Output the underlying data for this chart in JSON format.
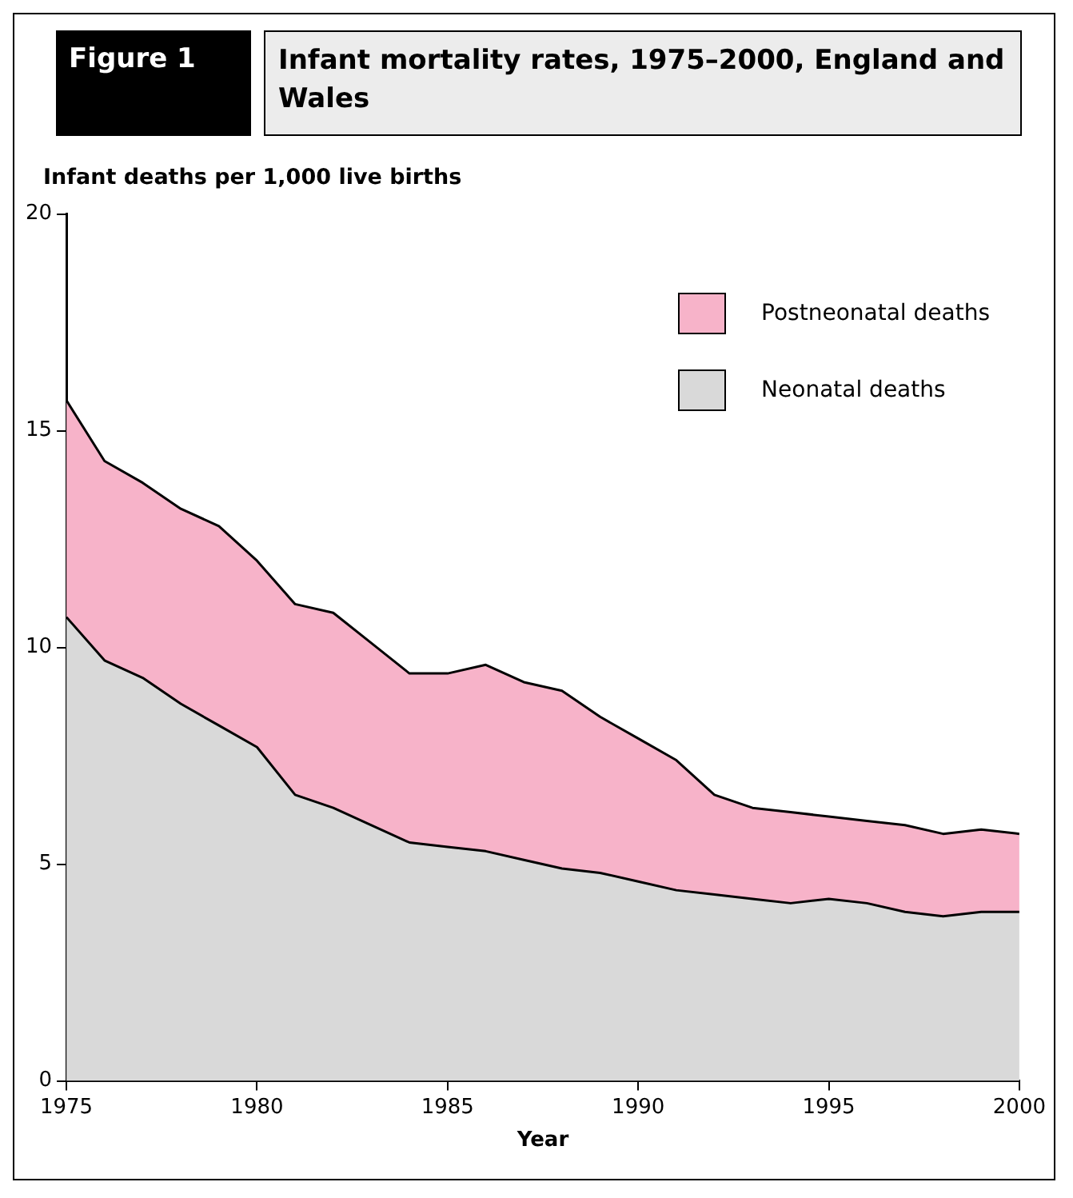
{
  "chart_data": {
    "type": "area",
    "title": "Infant mortality rates, 1975–2000, England and Wales",
    "ylabel": "Infant deaths per 1,000 live births",
    "xlabel": "Year",
    "annotations": [
      "Figure 1"
    ],
    "x": [
      1975,
      1976,
      1977,
      1978,
      1979,
      1980,
      1981,
      1982,
      1983,
      1984,
      1985,
      1986,
      1987,
      1988,
      1989,
      1990,
      1991,
      1992,
      1993,
      1994,
      1995,
      1996,
      1997,
      1998,
      1999,
      2000
    ],
    "stacked": true,
    "series": [
      {
        "name": "Neonatal deaths",
        "color": "#d9d9d9",
        "values": [
          10.7,
          9.7,
          9.3,
          8.7,
          8.2,
          7.7,
          6.6,
          6.3,
          5.9,
          5.5,
          5.4,
          5.3,
          5.1,
          4.9,
          4.8,
          4.6,
          4.4,
          4.3,
          4.2,
          4.1,
          4.2,
          4.1,
          3.9,
          3.8,
          3.9,
          3.9
        ]
      },
      {
        "name": "Postneonatal deaths",
        "color": "#f7b3c9",
        "values": [
          5.0,
          4.6,
          4.5,
          4.5,
          4.6,
          4.3,
          4.4,
          4.5,
          4.2,
          3.9,
          4.0,
          4.3,
          4.1,
          4.1,
          3.6,
          3.3,
          3.0,
          2.3,
          2.1,
          2.1,
          1.9,
          1.9,
          2.0,
          1.9,
          1.9,
          1.8
        ]
      }
    ],
    "xlim": [
      1975,
      2000
    ],
    "xticks": [
      1975,
      1980,
      1985,
      1990,
      1995,
      2000
    ],
    "ylim": [
      0,
      20
    ],
    "yticks": [
      0,
      5,
      10,
      15,
      20
    ],
    "grid": false,
    "legend": "top right",
    "marker": "none"
  }
}
